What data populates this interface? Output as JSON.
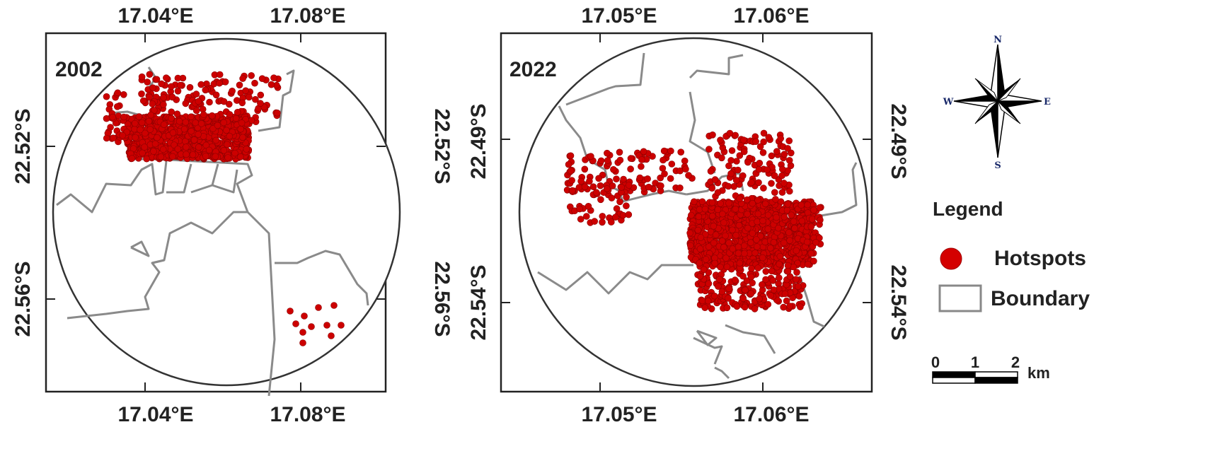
{
  "maps": [
    {
      "year": "2002",
      "top_ticks": [
        "17.04°E",
        "17.08°E"
      ],
      "bottom_ticks": [
        "17.04°E",
        "17.08°E"
      ],
      "left_ticks": [
        "22.52°S",
        "22.56°S"
      ],
      "right_ticks": [
        "22.52°S",
        "22.56°S"
      ]
    },
    {
      "year": "2022",
      "top_ticks": [
        "17.05°E",
        "17.06°E"
      ],
      "bottom_ticks": [
        "17.05°E",
        "17.06°E"
      ],
      "left_ticks": [
        "22.49°S",
        "22.54°S"
      ],
      "right_ticks": [
        "22.49°S",
        "22.54°S"
      ]
    }
  ],
  "compass": {
    "n": "N",
    "s": "S",
    "e": "E",
    "w": "W"
  },
  "legend": {
    "title": "Legend",
    "items": [
      {
        "label": "Hotspots",
        "color": "#d40000"
      },
      {
        "label": "Boundary",
        "color": "#888888"
      }
    ]
  },
  "scale_bar": {
    "labels": [
      "0",
      "1",
      "2"
    ],
    "unit": "km"
  },
  "colors": {
    "hotspot": "#cc0000",
    "boundary": "#8a8a8a",
    "frame": "#222222"
  }
}
